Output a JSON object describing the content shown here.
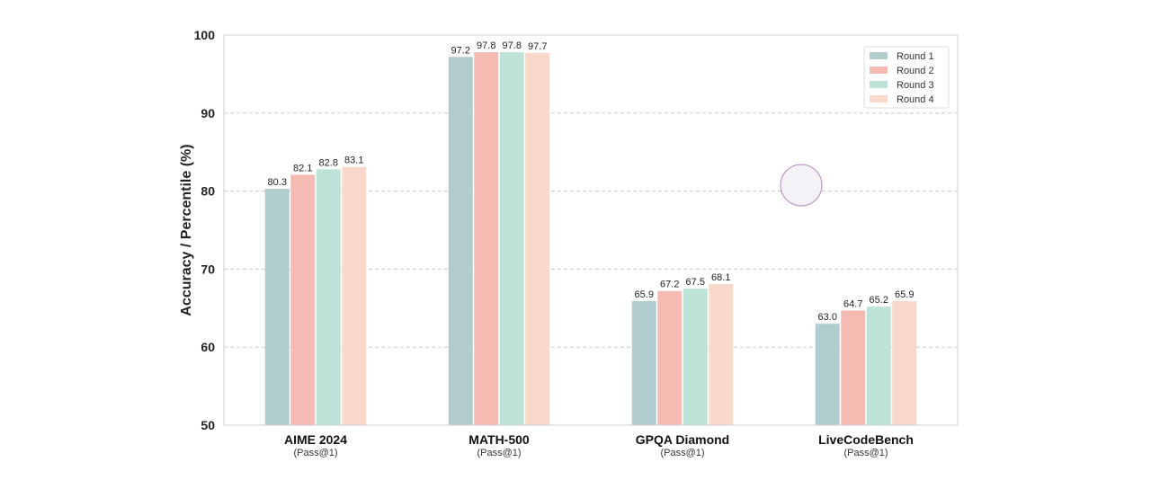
{
  "chart_data": {
    "type": "bar",
    "title": "",
    "xlabel": "",
    "ylabel": "Accuracy / Percentile (%)",
    "ylim": [
      50,
      100
    ],
    "yticks": [
      50,
      60,
      70,
      80,
      90,
      100
    ],
    "grid": "horizontal-dashed",
    "legend_position": "top-right",
    "categories": [
      "AIME 2024",
      "MATH-500",
      "GPQA Diamond",
      "LiveCodeBench"
    ],
    "category_sublabels": [
      "(Pass@1)",
      "(Pass@1)",
      "(Pass@1)",
      "(Pass@1)"
    ],
    "series": [
      {
        "name": "Round 1",
        "color": "#b0cccd",
        "values": [
          80.3,
          97.2,
          65.9,
          63.0
        ]
      },
      {
        "name": "Round 2",
        "color": "#f5bbb3",
        "values": [
          82.1,
          97.8,
          67.2,
          64.7
        ]
      },
      {
        "name": "Round 3",
        "color": "#bde3d9",
        "values": [
          82.8,
          97.8,
          67.5,
          65.2
        ]
      },
      {
        "name": "Round 4",
        "color": "#f8d8cb",
        "values": [
          83.1,
          97.7,
          68.1,
          65.9
        ]
      }
    ]
  }
}
